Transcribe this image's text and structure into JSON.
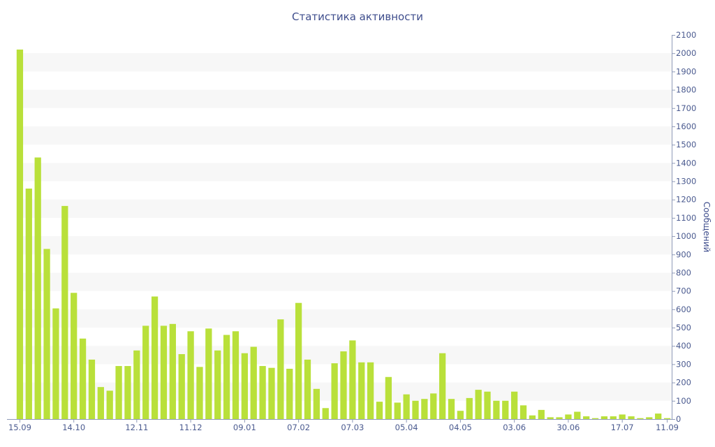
{
  "chart_data": {
    "type": "bar",
    "title": "Статистика активности",
    "xlabel": "",
    "ylabel": "Сообщений",
    "ylim": [
      0,
      2100
    ],
    "ytick_step": 100,
    "yaxis_side": "right",
    "grid": "alternating horizontal bands",
    "bar_color": "#b9e03a",
    "band_color": "#f7f7f7",
    "axis_text_color": "#4a5a8f",
    "x_tick_labels": [
      {
        "index": 0,
        "label": "15.09"
      },
      {
        "index": 6,
        "label": "14.10"
      },
      {
        "index": 13,
        "label": "12.11"
      },
      {
        "index": 19,
        "label": "11.12"
      },
      {
        "index": 25,
        "label": "09.01"
      },
      {
        "index": 31,
        "label": "07.02"
      },
      {
        "index": 37,
        "label": "07.03"
      },
      {
        "index": 43,
        "label": "05.04"
      },
      {
        "index": 49,
        "label": "04.05"
      },
      {
        "index": 55,
        "label": "03.06"
      },
      {
        "index": 61,
        "label": "30.06"
      },
      {
        "index": 67,
        "label": "17.07"
      },
      {
        "index": 72,
        "label": "11.09"
      }
    ],
    "values": [
      2020,
      1260,
      1430,
      930,
      605,
      1165,
      690,
      440,
      325,
      175,
      155,
      290,
      290,
      375,
      510,
      670,
      510,
      520,
      355,
      480,
      285,
      495,
      375,
      460,
      480,
      360,
      395,
      290,
      280,
      545,
      275,
      635,
      325,
      165,
      60,
      305,
      370,
      430,
      310,
      310,
      95,
      230,
      90,
      135,
      100,
      110,
      140,
      360,
      110,
      45,
      115,
      160,
      150,
      100,
      100,
      150,
      75,
      20,
      50,
      10,
      10,
      25,
      40,
      15,
      5,
      15,
      15,
      25,
      15,
      5,
      10,
      30,
      5
    ]
  }
}
